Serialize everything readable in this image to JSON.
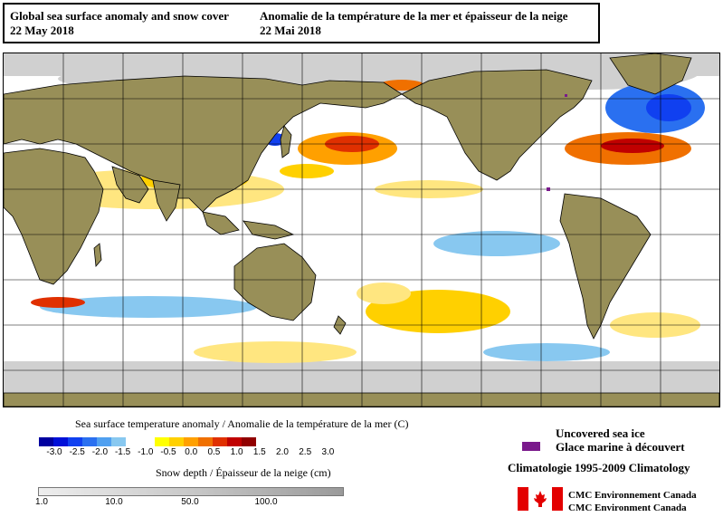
{
  "title": {
    "en_line1": "Global sea surface anomaly and snow cover",
    "en_line2": "22 May 2018",
    "fr_line1": "Anomalie de la température de la mer et épaisseur de la neige",
    "fr_line2": "22 Mai 2018"
  },
  "colors": {
    "land": "#988f58",
    "ocean": "#ffffff",
    "snow": "#d0d0d0",
    "sea_ice": "#7a1a8c",
    "coastline": "#000000",
    "graticule": "#000000"
  },
  "sst_legend": {
    "title": "Sea surface temperature anomaly / Anomalie de la température de la mer (C)",
    "labels": [
      "-3.0",
      "-2.5",
      "-2.0",
      "-1.5",
      "-1.0",
      "-0.5",
      "0.0",
      "0.5",
      "1.0",
      "1.5",
      "2.0",
      "2.5",
      "3.0"
    ],
    "colors": [
      "#0000a0",
      "#0010d8",
      "#1040f0",
      "#2a70f0",
      "#50a0f0",
      "#88c8f0",
      "#ffffff",
      "#ffffff",
      "#ffff00",
      "#ffd000",
      "#ffa000",
      "#f07000",
      "#e03000",
      "#c00000",
      "#900000"
    ]
  },
  "snow_legend": {
    "title": "Snow depth / Épaisseur de la neige (cm)",
    "labels": [
      "1.0",
      "10.0",
      "50.0",
      "100.0"
    ]
  },
  "sea_ice_legend": {
    "en": "Uncovered sea ice",
    "fr": "Glace marine à découvert"
  },
  "climatology": "Climatologie 1995-2009 Climatology",
  "credits": {
    "fr": "CMC Environnement Canada",
    "en": "CMC Environment Canada"
  }
}
